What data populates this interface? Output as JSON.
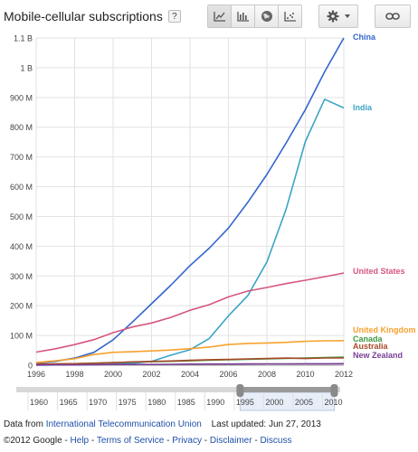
{
  "header": {
    "title": "Mobile-cellular subscriptions",
    "help_label": "?"
  },
  "toolbar": {
    "view_buttons": [
      {
        "icon": "line-chart-icon",
        "active": true
      },
      {
        "icon": "bar-chart-icon",
        "active": false
      },
      {
        "icon": "globe-icon",
        "active": false
      },
      {
        "icon": "scatter-chart-icon",
        "active": false
      }
    ],
    "settings_icon": "gear-icon",
    "link_icon": "link-icon"
  },
  "chart_data": {
    "type": "line",
    "title": "Mobile-cellular subscriptions",
    "xlabel": "",
    "ylabel": "",
    "xlim": [
      1996,
      2012
    ],
    "ylim": [
      0,
      1100000000
    ],
    "grid": true,
    "x_ticks": [
      "1996",
      "1998",
      "2000",
      "2002",
      "2004",
      "2006",
      "2008",
      "2010",
      "2012"
    ],
    "y_ticks": [
      {
        "value": 0,
        "label": "0"
      },
      {
        "value": 100000000,
        "label": "100 M"
      },
      {
        "value": 200000000,
        "label": "200 M"
      },
      {
        "value": 300000000,
        "label": "300 M"
      },
      {
        "value": 400000000,
        "label": "400 M"
      },
      {
        "value": 500000000,
        "label": "500 M"
      },
      {
        "value": 600000000,
        "label": "600 M"
      },
      {
        "value": 700000000,
        "label": "700 M"
      },
      {
        "value": 800000000,
        "label": "800 M"
      },
      {
        "value": 900000000,
        "label": "900 M"
      },
      {
        "value": 1000000000,
        "label": "1 B"
      },
      {
        "value": 1100000000,
        "label": "1.1 B"
      }
    ],
    "x": [
      1996,
      1997,
      1998,
      1999,
      2000,
      2001,
      2002,
      2003,
      2004,
      2005,
      2006,
      2007,
      2008,
      2009,
      2010,
      2011,
      2012
    ],
    "series": [
      {
        "name": "China",
        "color": "#3366cc",
        "values": [
          7000000,
          13200000,
          23900000,
          43300000,
          85300000,
          144800000,
          206600000,
          269000000,
          334800000,
          393400000,
          461100000,
          547300000,
          641200000,
          747200000,
          859000000,
          986300000,
          1100000000
        ]
      },
      {
        "name": "India",
        "color": "#3ca4c6",
        "values": [
          300000,
          900000,
          1200000,
          1900000,
          3600000,
          6500000,
          13000000,
          33700000,
          52000000,
          90000000,
          166000000,
          233600000,
          346900000,
          525100000,
          752200000,
          893900000,
          864700000
        ]
      },
      {
        "name": "United States",
        "color": "#d6577e",
        "values": [
          44000000,
          55300000,
          69200000,
          86000000,
          109500000,
          128500000,
          141800000,
          160600000,
          184800000,
          203700000,
          229600000,
          249300000,
          261300000,
          274300000,
          285600000,
          297400000,
          310000000
        ]
      },
      {
        "name": "United Kingdom",
        "color": "#f7a22d",
        "values": [
          8800000,
          14900000,
          21900000,
          36000000,
          43500000,
          45300000,
          47900000,
          51200000,
          55700000,
          61100000,
          69600000,
          73100000,
          74800000,
          77000000,
          80300000,
          82100000,
          82700000
        ]
      },
      {
        "name": "Canada",
        "color": "#3f9a3f",
        "values": [
          3400000,
          4200000,
          5300000,
          6900000,
          8700000,
          10600000,
          11800000,
          13200000,
          15000000,
          16600000,
          18200000,
          19900000,
          21500000,
          23000000,
          24100000,
          25800000,
          27400000
        ]
      },
      {
        "name": "Australia",
        "color": "#a84a2a",
        "values": [
          3800000,
          4600000,
          5100000,
          6300000,
          8600000,
          11100000,
          12700000,
          14300000,
          16400000,
          18400000,
          19400000,
          21300000,
          22500000,
          23900000,
          22500000,
          24200000,
          24400000
        ]
      },
      {
        "name": "New Zealand",
        "color": "#7a3e96",
        "values": [
          600000,
          800000,
          1000000,
          1400000,
          2300000,
          2500000,
          2500000,
          3000000,
          3500000,
          3800000,
          4100000,
          4200000,
          4600000,
          4600000,
          4900000,
          5000000,
          5100000
        ]
      }
    ]
  },
  "navigator": {
    "labels": [
      "1960",
      "1965",
      "1970",
      "1975",
      "1980",
      "1985",
      "1990",
      "1995",
      "2000",
      "2005",
      "2010"
    ],
    "range_start": 1996,
    "range_end": 2012,
    "axis_start": 1958,
    "axis_end": 2013
  },
  "source": {
    "prefix": "Data from",
    "link": "International Telecommunication Union",
    "updated": "Last updated: Jun 27, 2013"
  },
  "footer": {
    "copyright": "©2012 Google",
    "links": [
      "Help",
      "Terms of Service",
      "Privacy",
      "Disclaimer",
      "Discuss"
    ]
  }
}
